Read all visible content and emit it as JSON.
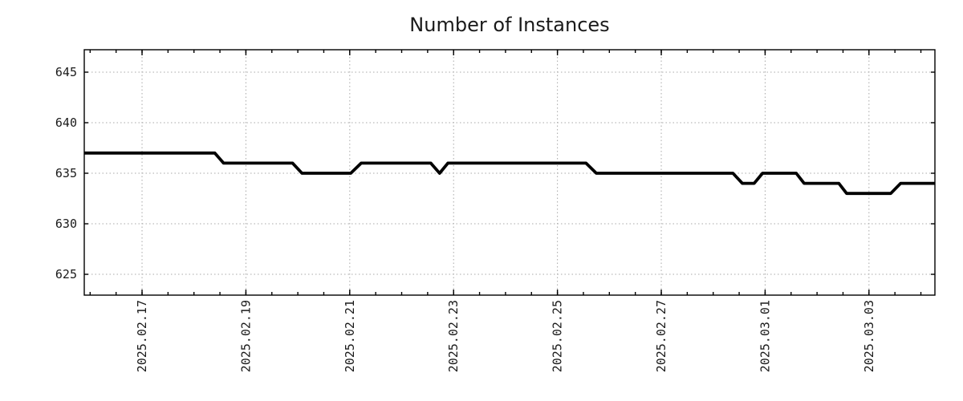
{
  "chart_data": {
    "type": "line",
    "title": "Number of Instances",
    "x_axis": {
      "note": "x values are fractional days since 2025-02-17 00:00, read off the date axis",
      "lim": [
        -1.113,
        15.27
      ],
      "major_ticks": [
        0,
        2,
        4,
        6,
        8,
        10,
        12,
        14
      ],
      "major_tick_labels": [
        "2025.02.17",
        "2025.02.19",
        "2025.02.21",
        "2025.02.23",
        "2025.02.25",
        "2025.02.27",
        "2025.03.01",
        "2025.03.03"
      ],
      "minor_tick_step": 0.5
    },
    "y_axis": {
      "lim": [
        622.94,
        647.22
      ],
      "major_ticks": [
        625,
        630,
        635,
        640,
        645
      ],
      "major_tick_labels": [
        "625",
        "630",
        "635",
        "640",
        "645"
      ]
    },
    "grid": true,
    "legend": false,
    "colors": {
      "line": "#000000",
      "grid": "#a8a8a8",
      "frame": "#000000",
      "text": "#1a1a1a",
      "background": "#ffffff"
    },
    "series": [
      {
        "name": "Number of Instances",
        "points": [
          [
            -1.11,
            637
          ],
          [
            1.4,
            637
          ],
          [
            1.57,
            636
          ],
          [
            2.9,
            636
          ],
          [
            3.08,
            635
          ],
          [
            4.02,
            635
          ],
          [
            4.22,
            636
          ],
          [
            5.56,
            636
          ],
          [
            5.73,
            635
          ],
          [
            5.89,
            636
          ],
          [
            8.55,
            636
          ],
          [
            8.75,
            635
          ],
          [
            11.38,
            635
          ],
          [
            11.56,
            634
          ],
          [
            11.79,
            634
          ],
          [
            11.95,
            635
          ],
          [
            12.6,
            635
          ],
          [
            12.75,
            634
          ],
          [
            13.42,
            634
          ],
          [
            13.57,
            633
          ],
          [
            14.42,
            633
          ],
          [
            14.61,
            634
          ],
          [
            15.27,
            634
          ]
        ]
      }
    ],
    "value_timeline": [
      {
        "until": "2025-02-18 ~10h",
        "value": 637
      },
      {
        "from": "2025-02-18 ~14h",
        "until": "2025-02-19 ~22h",
        "value": 636
      },
      {
        "from": "2025-02-20 ~02h",
        "until": "2025-02-21 ~00h",
        "value": 635
      },
      {
        "from": "2025-02-21 ~05h",
        "until": "2025-02-22 ~13h",
        "value": 636
      },
      {
        "at": "2025-02-22 ~17h",
        "value": 635
      },
      {
        "from": "2025-02-22 ~21h",
        "until": "2025-02-25 ~13h",
        "value": 636
      },
      {
        "from": "2025-02-25 ~18h",
        "until": "2025-02-28 ~09h",
        "value": 635
      },
      {
        "from": "2025-02-28 ~13h",
        "until": "2025-02-28 ~19h",
        "value": 634
      },
      {
        "from": "2025-02-28 ~23h",
        "until": "2025-03-01 ~14h",
        "value": 635
      },
      {
        "from": "2025-03-01 ~18h",
        "until": "2025-03-02 ~10h",
        "value": 634
      },
      {
        "from": "2025-03-02 ~14h",
        "until": "2025-03-03 ~10h",
        "value": 633
      },
      {
        "from": "2025-03-03 ~15h",
        "until": "end of axis",
        "value": 634
      }
    ]
  }
}
